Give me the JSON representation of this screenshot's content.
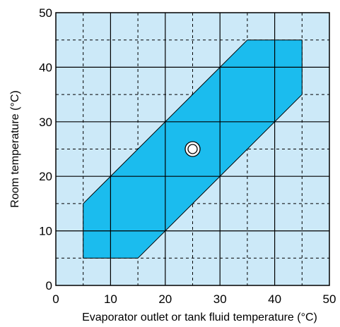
{
  "chart_data": {
    "type": "area",
    "xlabel": "Evaporator outlet or tank fluid temperature (°C)",
    "ylabel": "Room temperature (°C)",
    "xlim": [
      0,
      50
    ],
    "ylim": [
      0,
      50
    ],
    "xticks": [
      "0",
      "10",
      "20",
      "30",
      "40",
      "50"
    ],
    "yticks": [
      "0",
      "10",
      "20",
      "30",
      "40",
      "50"
    ],
    "grid": true,
    "region": {
      "points": [
        [
          5,
          5
        ],
        [
          15,
          5
        ],
        [
          45,
          35
        ],
        [
          45,
          45
        ],
        [
          35,
          45
        ],
        [
          5,
          15
        ]
      ]
    },
    "marker": {
      "x": 25,
      "y": 25
    },
    "colors": {
      "plot_background": "#cce9f8",
      "region_fill": "#1bbcee",
      "grid_major": "#000000",
      "marker_fill": "#ffffff"
    }
  }
}
